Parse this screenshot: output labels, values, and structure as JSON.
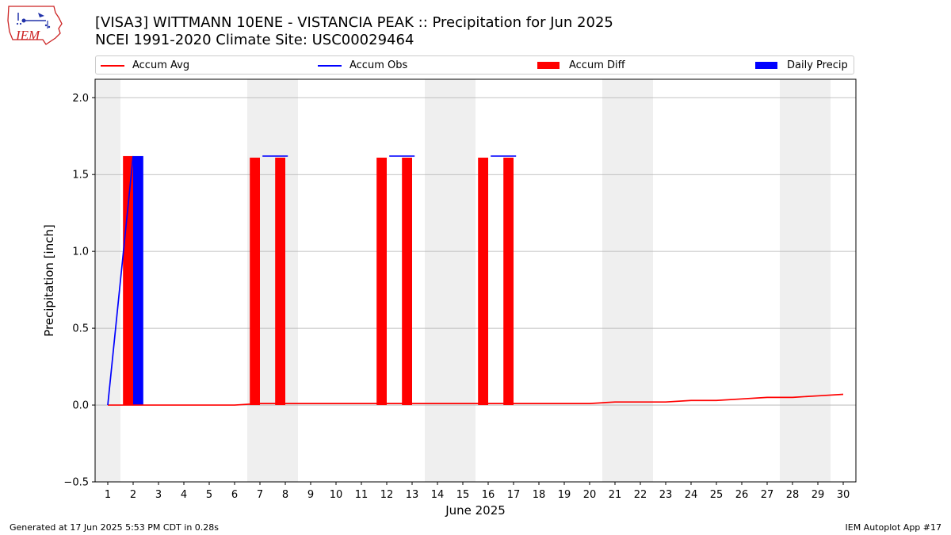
{
  "page": {
    "title_line1": "[VISA3] WITTMANN 10ENE - VISTANCIA PEAK :: Precipitation for Jun 2025",
    "title_line2": "NCEI 1991-2020 Climate Site: USC00029464",
    "footer_left": "Generated at 17 Jun 2025 5:53 PM CDT in 0.28s",
    "footer_right": "IEM Autoplot App #17",
    "logo_text": "IEM"
  },
  "legend": {
    "accum_avg": "Accum Avg",
    "accum_obs": "Accum Obs",
    "accum_diff": "Accum Diff",
    "daily_precip": "Daily Precip"
  },
  "colors": {
    "accum_avg": "#ff0000",
    "accum_obs": "#0000ff",
    "accum_diff": "#ff0000",
    "daily_precip": "#0000ff",
    "weekend_shade": "#efefef",
    "grid": "#b0b0b0"
  },
  "chart_data": {
    "type": "bar",
    "title": "[VISA3] WITTMANN 10ENE - VISTANCIA PEAK :: Precipitation for Jun 2025",
    "subtitle": "NCEI 1991-2020 Climate Site: USC00029464",
    "xlabel": "June 2025",
    "ylabel": "Precipitation [inch]",
    "xlim": [
      0.5,
      30.5
    ],
    "ylim": [
      -0.5,
      2.12
    ],
    "yticks": [
      -0.5,
      0.0,
      0.5,
      1.0,
      1.5,
      2.0
    ],
    "ytick_labels": [
      "−0.5",
      "0.0",
      "0.5",
      "1.0",
      "1.5",
      "2.0"
    ],
    "x": [
      1,
      2,
      3,
      4,
      5,
      6,
      7,
      8,
      9,
      10,
      11,
      12,
      13,
      14,
      15,
      16,
      17,
      18,
      19,
      20,
      21,
      22,
      23,
      24,
      25,
      26,
      27,
      28,
      29,
      30
    ],
    "xtick_labels": [
      "1",
      "2",
      "3",
      "4",
      "5",
      "6",
      "7",
      "8",
      "9",
      "10",
      "11",
      "12",
      "13",
      "14",
      "15",
      "16",
      "17",
      "18",
      "19",
      "20",
      "21",
      "22",
      "23",
      "24",
      "25",
      "26",
      "27",
      "28",
      "29",
      "30"
    ],
    "weekend_spans": [
      [
        0.5,
        1.5
      ],
      [
        6.5,
        8.5
      ],
      [
        13.5,
        15.5
      ],
      [
        20.5,
        22.5
      ],
      [
        27.5,
        29.5
      ]
    ],
    "grid": "y",
    "legend_position": "top",
    "series": [
      {
        "name": "Accum Avg",
        "type": "line",
        "values": [
          0.0,
          0.0,
          0.0,
          0.0,
          0.0,
          0.0,
          0.01,
          0.01,
          0.01,
          0.01,
          0.01,
          0.01,
          0.01,
          0.01,
          0.01,
          0.01,
          0.01,
          0.01,
          0.01,
          0.01,
          0.02,
          0.02,
          0.02,
          0.03,
          0.03,
          0.04,
          0.05,
          0.05,
          0.06,
          0.07
        ]
      },
      {
        "name": "Accum Obs",
        "type": "line",
        "values": [
          0.0,
          1.62,
          null,
          null,
          null,
          null,
          null,
          1.62,
          null,
          null,
          null,
          null,
          1.62,
          null,
          null,
          null,
          1.62,
          null,
          null,
          null,
          null,
          null,
          null,
          null,
          null,
          null,
          null,
          null,
          null,
          null
        ]
      },
      {
        "name": "Accum Diff",
        "type": "bar",
        "values": [
          0,
          1.62,
          0,
          0,
          0,
          0,
          1.61,
          1.61,
          0,
          0,
          0,
          1.61,
          1.61,
          0,
          0,
          1.61,
          1.61,
          0,
          0,
          0,
          0,
          0,
          0,
          0,
          0,
          0,
          0,
          0,
          0,
          0
        ]
      },
      {
        "name": "Daily Precip",
        "type": "bar",
        "values": [
          0,
          1.62,
          0,
          0,
          0,
          0,
          0,
          0,
          0,
          0,
          0,
          0,
          0,
          0,
          0,
          0,
          0,
          0,
          0,
          0,
          0,
          0,
          0,
          0,
          0,
          0,
          0,
          0,
          0,
          0
        ]
      }
    ],
    "obs_segments": [
      [
        1,
        0.0,
        2,
        1.62
      ],
      [
        7.1,
        1.62,
        8.1,
        1.62
      ],
      [
        12.1,
        1.62,
        13.1,
        1.62
      ],
      [
        16.1,
        1.62,
        17.1,
        1.62
      ]
    ]
  }
}
